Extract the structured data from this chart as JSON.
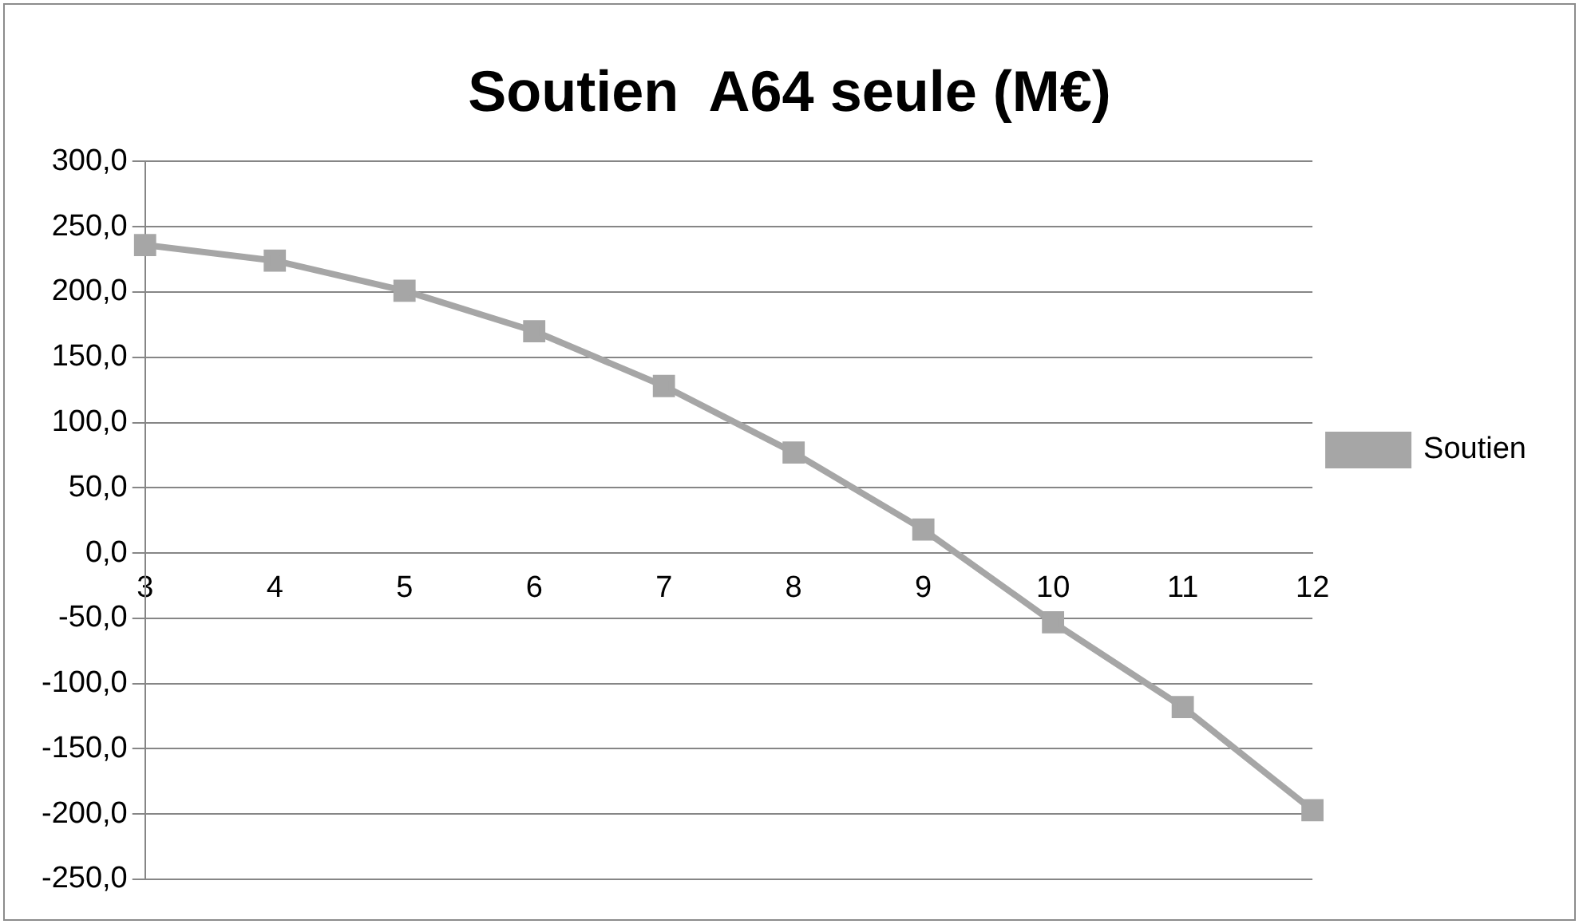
{
  "chart_data": {
    "type": "line",
    "title": "Soutien  A64 seule (M€)",
    "categories": [
      "3",
      "4",
      "5",
      "6",
      "7",
      "8",
      "9",
      "10",
      "11",
      "12"
    ],
    "series": [
      {
        "name": "Soutien",
        "color": "#a6a6a6",
        "values": [
          236,
          224,
          201,
          170,
          128,
          77,
          18,
          -53,
          -118,
          -197
        ]
      }
    ],
    "ylim": [
      -250,
      300
    ],
    "yticks": [
      {
        "value": 300,
        "label": "300,0"
      },
      {
        "value": 250,
        "label": "250,0"
      },
      {
        "value": 200,
        "label": "200,0"
      },
      {
        "value": 150,
        "label": "150,0"
      },
      {
        "value": 100,
        "label": "100,0"
      },
      {
        "value": 50,
        "label": "50,0"
      },
      {
        "value": 0,
        "label": "0,0"
      },
      {
        "value": -50,
        "label": "-50,0"
      },
      {
        "value": -100,
        "label": "-100,0"
      },
      {
        "value": -150,
        "label": "-150,0"
      },
      {
        "value": -200,
        "label": "-200,0"
      },
      {
        "value": -250,
        "label": "-250,0"
      }
    ],
    "grid": "y",
    "legend": "right",
    "marker": "square",
    "line_style": "solid"
  }
}
